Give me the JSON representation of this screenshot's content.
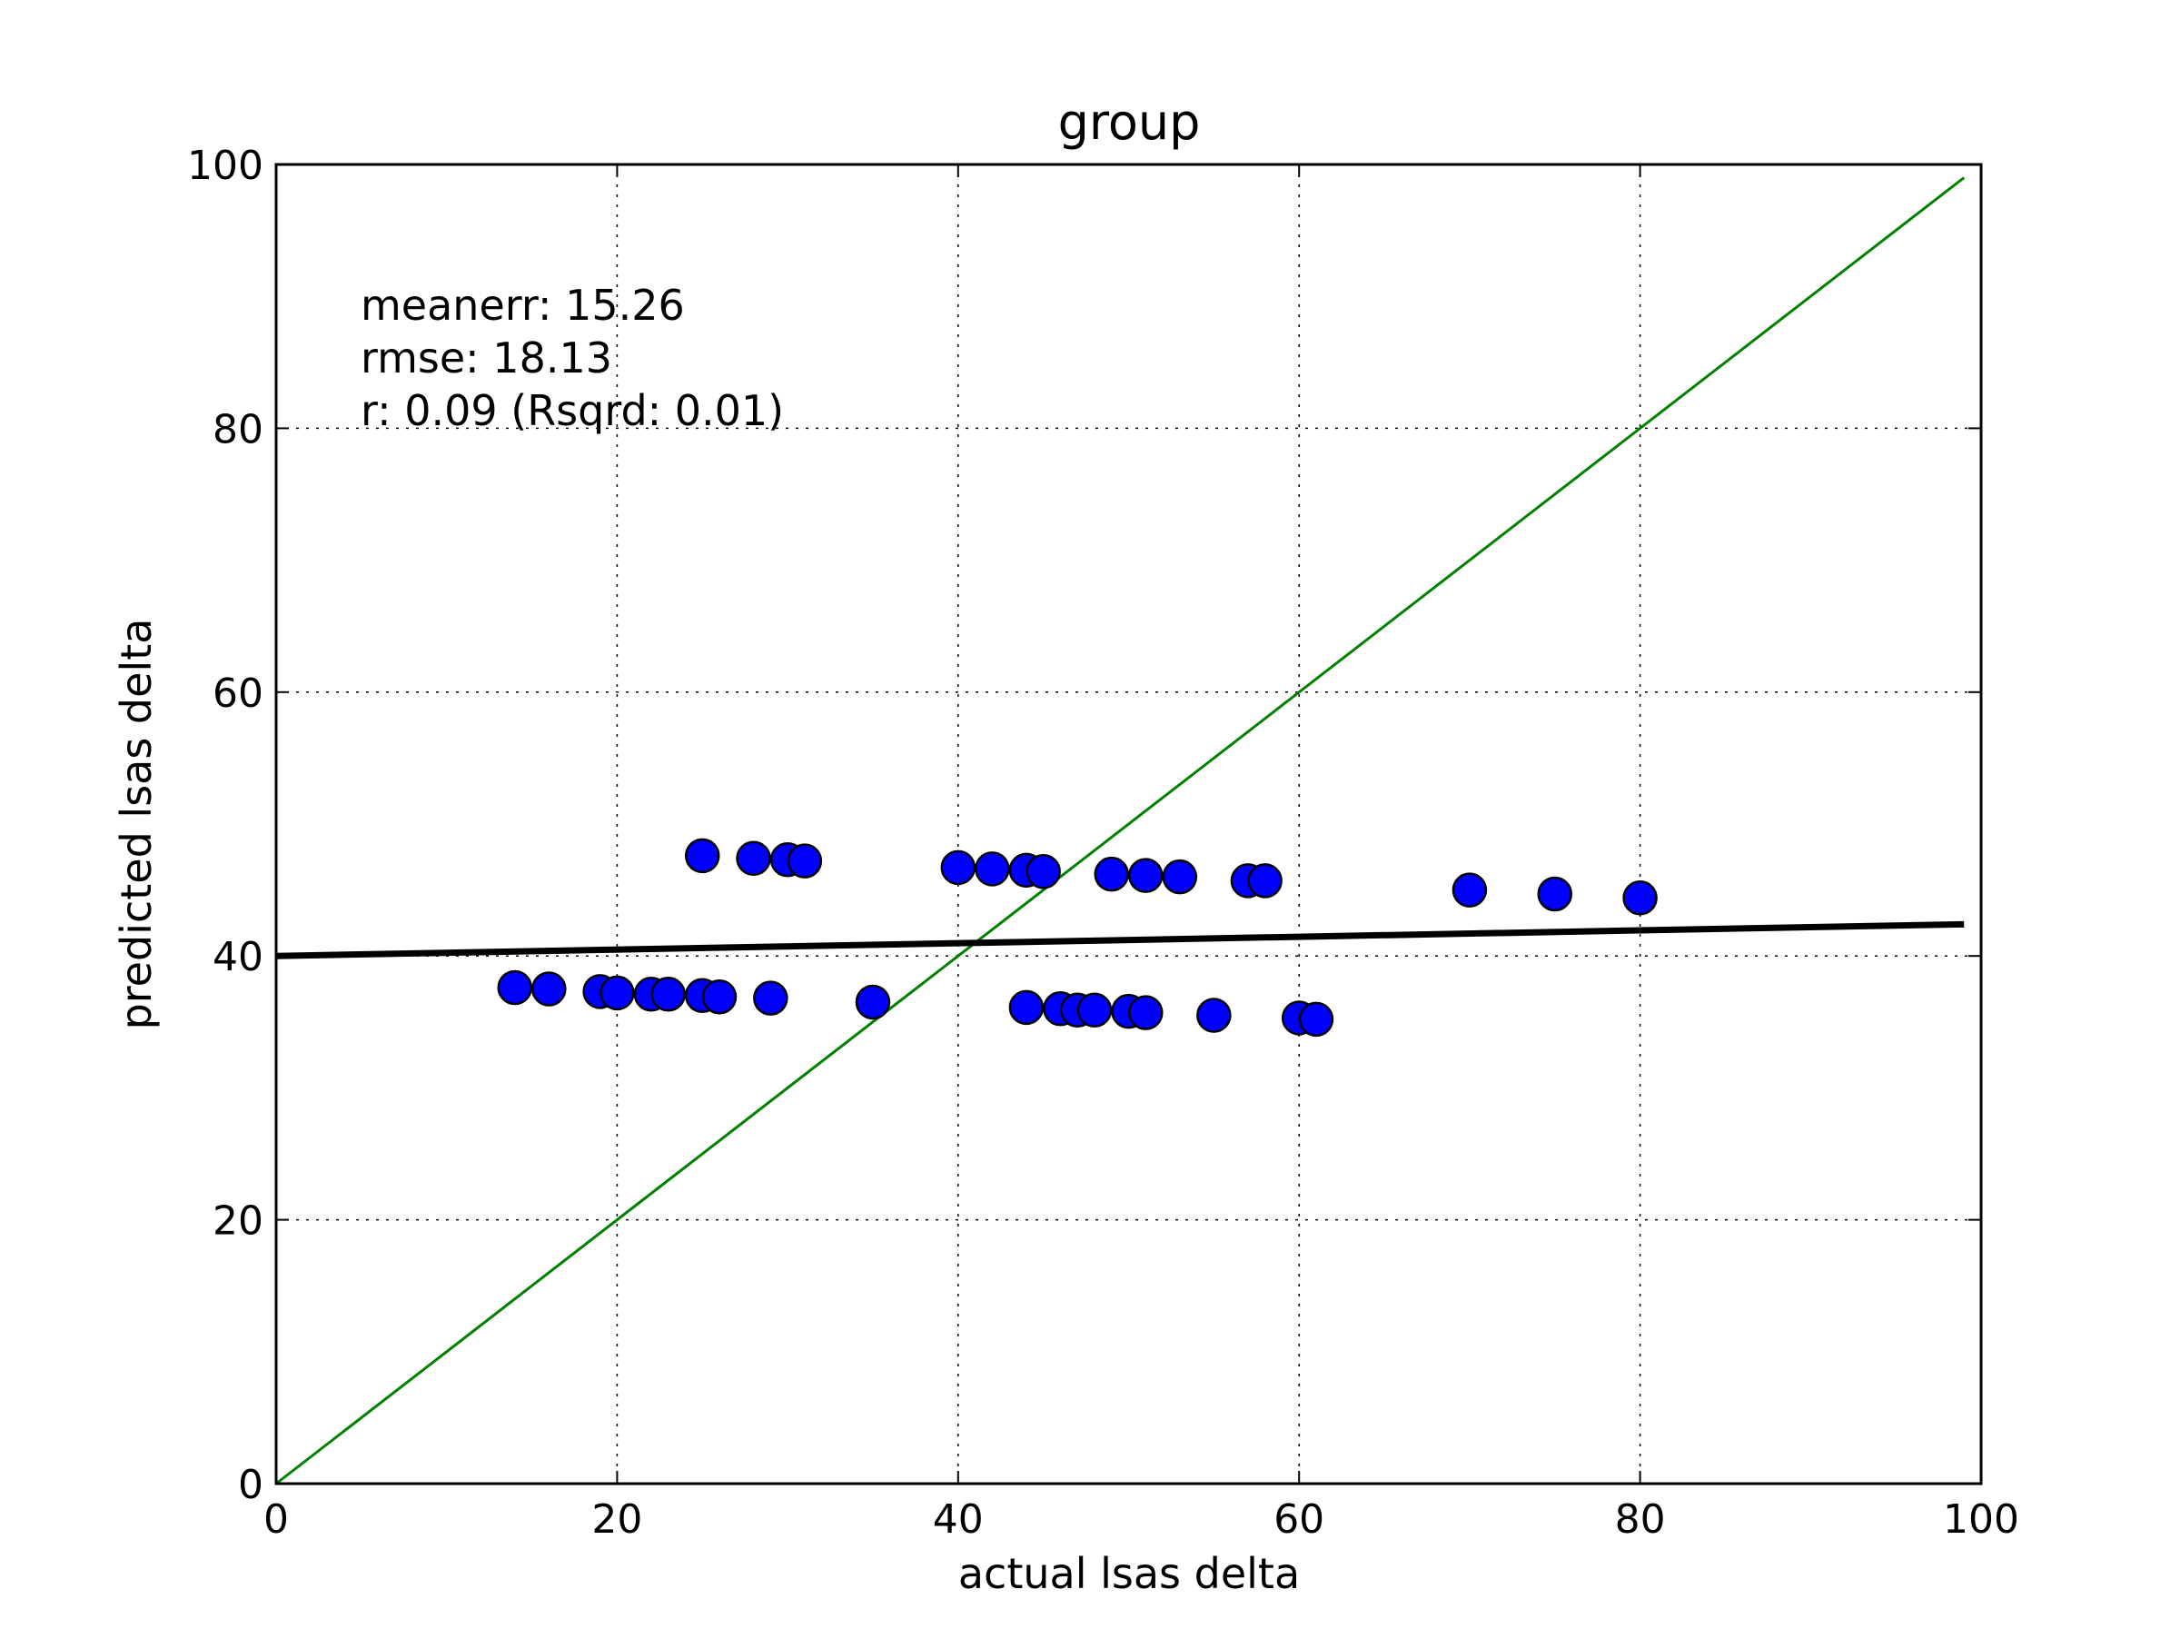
{
  "chart_data": {
    "type": "scatter",
    "title": "group",
    "xlabel": "actual lsas delta",
    "ylabel": "predicted lsas delta",
    "xlim": [
      0,
      100
    ],
    "ylim": [
      0,
      100
    ],
    "xticks": [
      0,
      20,
      40,
      60,
      80,
      100
    ],
    "yticks": [
      0,
      20,
      40,
      60,
      80,
      100
    ],
    "grid": true,
    "annotations": [
      "meanerr: 15.26",
      "rmse: 18.13",
      "r: 0.09 (Rsqrd: 0.01)"
    ],
    "colors": {
      "points": "#0000ff",
      "point_edge": "#000000",
      "identity_line": "#008000",
      "fit_line": "#000000",
      "grid": "#000000"
    },
    "points": [
      {
        "x": 14,
        "y": 37.6
      },
      {
        "x": 16,
        "y": 37.5
      },
      {
        "x": 19,
        "y": 37.3
      },
      {
        "x": 20,
        "y": 37.2
      },
      {
        "x": 22,
        "y": 37.1
      },
      {
        "x": 23,
        "y": 37.1
      },
      {
        "x": 25,
        "y": 37.0
      },
      {
        "x": 26,
        "y": 36.9
      },
      {
        "x": 29,
        "y": 36.8
      },
      {
        "x": 35,
        "y": 36.5
      },
      {
        "x": 44,
        "y": 36.1
      },
      {
        "x": 46,
        "y": 36.0
      },
      {
        "x": 47,
        "y": 35.9
      },
      {
        "x": 48,
        "y": 35.9
      },
      {
        "x": 50,
        "y": 35.8
      },
      {
        "x": 51,
        "y": 35.7
      },
      {
        "x": 55,
        "y": 35.5
      },
      {
        "x": 60,
        "y": 35.3
      },
      {
        "x": 61,
        "y": 35.2
      },
      {
        "x": 25,
        "y": 47.6
      },
      {
        "x": 28,
        "y": 47.4
      },
      {
        "x": 30,
        "y": 47.3
      },
      {
        "x": 31,
        "y": 47.2
      },
      {
        "x": 40,
        "y": 46.7
      },
      {
        "x": 42,
        "y": 46.6
      },
      {
        "x": 44,
        "y": 46.5
      },
      {
        "x": 45,
        "y": 46.4
      },
      {
        "x": 49,
        "y": 46.2
      },
      {
        "x": 51,
        "y": 46.1
      },
      {
        "x": 53,
        "y": 46.0
      },
      {
        "x": 57,
        "y": 45.7
      },
      {
        "x": 58,
        "y": 45.7
      },
      {
        "x": 70,
        "y": 45.0
      },
      {
        "x": 75,
        "y": 44.7
      },
      {
        "x": 80,
        "y": 44.4
      }
    ],
    "identity_line": {
      "x": [
        0,
        99
      ],
      "y": [
        0,
        99
      ]
    },
    "fit_line": {
      "x": [
        0,
        99
      ],
      "y": [
        40.0,
        42.4
      ]
    }
  }
}
